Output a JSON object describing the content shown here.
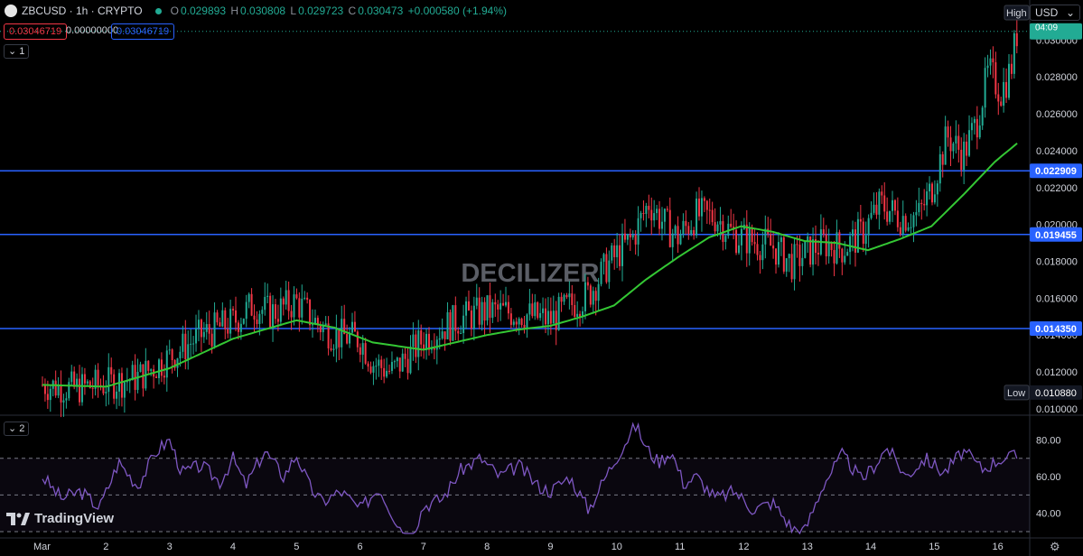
{
  "header": {
    "symbol": "ZBCUSD · 1h · CRYPTO",
    "open_label": "O",
    "open": "0.029893",
    "high_label": "H",
    "high": "0.030808",
    "low_label": "L",
    "low": "0.029723",
    "close_label": "C",
    "close": "0.030473",
    "change": "+0.000580 (+1.94%)"
  },
  "price_boxes": {
    "sell": "0.03046719",
    "spread": "0.00000000",
    "buy": "0.03046719"
  },
  "pane_buttons": {
    "main": "1",
    "rsi": "2"
  },
  "currency": "USD",
  "watermark": "DECILIZER",
  "brand": "TradingView",
  "high_tag": "High",
  "low_tag": "Low",
  "countdown": "04:09",
  "colors": {
    "up": "#22ab94",
    "down": "#f23645",
    "ma": "#34c734",
    "level": "#2962ff",
    "rsi": "#7e57c2"
  },
  "chart_data": [
    {
      "type": "candlestick",
      "title": "",
      "x_ticks": [
        "Mar",
        "2",
        "3",
        "4",
        "5",
        "6",
        "7",
        "8",
        "9",
        "10",
        "11",
        "12",
        "13",
        "14",
        "15",
        "16"
      ],
      "y_ticks": [
        "0.030000",
        "0.028000",
        "0.026000",
        "0.024000",
        "0.022000",
        "0.020000",
        "0.018000",
        "0.016000",
        "0.014000",
        "0.012000",
        "0.010000"
      ],
      "ylim": [
        0.0098,
        0.0308
      ],
      "horizontal_levels": [
        {
          "value": 0.022909,
          "label": "0.022909"
        },
        {
          "value": 0.019455,
          "label": "0.019455"
        },
        {
          "value": 0.01435,
          "label": "0.014350"
        }
      ],
      "price_high": {
        "value": 0.03047,
        "label": "0.030473"
      },
      "price_low": {
        "value": 0.01088,
        "label": "0.010880"
      },
      "close_trend_by_day": [
        [
          0.0,
          0.0113
        ],
        [
          0.5,
          0.0111
        ],
        [
          1.0,
          0.01135
        ],
        [
          1.5,
          0.0117
        ],
        [
          2.0,
          0.0128
        ],
        [
          2.5,
          0.014
        ],
        [
          3.0,
          0.0147
        ],
        [
          3.3,
          0.0156
        ],
        [
          3.6,
          0.0152
        ],
        [
          4.0,
          0.0158
        ],
        [
          4.3,
          0.0147
        ],
        [
          4.6,
          0.014
        ],
        [
          5.0,
          0.0138
        ],
        [
          5.2,
          0.0125
        ],
        [
          5.5,
          0.012
        ],
        [
          5.8,
          0.013
        ],
        [
          6.0,
          0.0138
        ],
        [
          6.3,
          0.0144
        ],
        [
          6.6,
          0.0149
        ],
        [
          7.0,
          0.0153
        ],
        [
          7.5,
          0.0152
        ],
        [
          8.0,
          0.0148
        ],
        [
          8.3,
          0.0156
        ],
        [
          8.6,
          0.0162
        ],
        [
          8.9,
          0.0178
        ],
        [
          9.3,
          0.0193
        ],
        [
          9.55,
          0.0212
        ],
        [
          9.8,
          0.02
        ],
        [
          10.0,
          0.0193
        ],
        [
          10.3,
          0.0205
        ],
        [
          10.6,
          0.0204
        ],
        [
          10.9,
          0.0194
        ],
        [
          11.2,
          0.0191
        ],
        [
          11.5,
          0.0188
        ],
        [
          11.8,
          0.0179
        ],
        [
          12.0,
          0.0184
        ],
        [
          12.3,
          0.019
        ],
        [
          12.6,
          0.0187
        ],
        [
          12.9,
          0.0195
        ],
        [
          13.2,
          0.0211
        ],
        [
          13.5,
          0.0204
        ],
        [
          13.8,
          0.0205
        ],
        [
          14.0,
          0.0219
        ],
        [
          14.25,
          0.0248
        ],
        [
          14.5,
          0.0238
        ],
        [
          14.7,
          0.0254
        ],
        [
          14.9,
          0.0283
        ],
        [
          15.1,
          0.0272
        ],
        [
          15.25,
          0.0284
        ],
        [
          15.35,
          0.03047
        ]
      ],
      "moving_average_by_day": [
        [
          0.0,
          0.0113
        ],
        [
          1.0,
          0.0112
        ],
        [
          2.0,
          0.0122
        ],
        [
          3.0,
          0.0138
        ],
        [
          4.0,
          0.0148
        ],
        [
          4.6,
          0.0144
        ],
        [
          5.2,
          0.0136
        ],
        [
          6.0,
          0.0132
        ],
        [
          6.5,
          0.0136
        ],
        [
          7.0,
          0.014
        ],
        [
          7.5,
          0.0143
        ],
        [
          8.0,
          0.0145
        ],
        [
          8.5,
          0.015
        ],
        [
          9.0,
          0.0156
        ],
        [
          9.5,
          0.017
        ],
        [
          10.0,
          0.0182
        ],
        [
          10.5,
          0.0193
        ],
        [
          11.0,
          0.0199
        ],
        [
          11.5,
          0.0196
        ],
        [
          12.0,
          0.0191
        ],
        [
          12.5,
          0.019
        ],
        [
          13.0,
          0.0186
        ],
        [
          13.5,
          0.0192
        ],
        [
          14.0,
          0.0199
        ],
        [
          14.5,
          0.0216
        ],
        [
          15.0,
          0.0234
        ],
        [
          15.35,
          0.0244
        ]
      ]
    },
    {
      "type": "line",
      "title": "",
      "series": [
        {
          "values_by_day": [
            [
              0.0,
              60
            ],
            [
              0.3,
              48
            ],
            [
              0.6,
              52
            ],
            [
              0.9,
              43
            ],
            [
              1.2,
              68
            ],
            [
              1.5,
              55
            ],
            [
              1.8,
              74
            ],
            [
              2.0,
              80
            ],
            [
              2.2,
              62
            ],
            [
              2.5,
              66
            ],
            [
              2.8,
              57
            ],
            [
              3.0,
              70
            ],
            [
              3.2,
              55
            ],
            [
              3.5,
              74
            ],
            [
              3.8,
              60
            ],
            [
              4.0,
              72
            ],
            [
              4.2,
              55
            ],
            [
              4.4,
              46
            ],
            [
              4.7,
              52
            ],
            [
              5.0,
              42
            ],
            [
              5.3,
              54
            ],
            [
              5.6,
              34
            ],
            [
              5.8,
              26
            ],
            [
              6.0,
              44
            ],
            [
              6.3,
              48
            ],
            [
              6.6,
              64
            ],
            [
              6.9,
              70
            ],
            [
              7.2,
              60
            ],
            [
              7.5,
              66
            ],
            [
              7.8,
              55
            ],
            [
              8.0,
              52
            ],
            [
              8.3,
              60
            ],
            [
              8.6,
              42
            ],
            [
              8.9,
              62
            ],
            [
              9.2,
              80
            ],
            [
              9.35,
              88
            ],
            [
              9.5,
              76
            ],
            [
              9.7,
              68
            ],
            [
              9.9,
              74
            ],
            [
              10.1,
              56
            ],
            [
              10.3,
              60
            ],
            [
              10.6,
              48
            ],
            [
              10.9,
              52
            ],
            [
              11.2,
              42
            ],
            [
              11.5,
              46
            ],
            [
              11.8,
              32
            ],
            [
              12.0,
              30
            ],
            [
              12.3,
              56
            ],
            [
              12.6,
              72
            ],
            [
              12.9,
              58
            ],
            [
              13.1,
              66
            ],
            [
              13.3,
              76
            ],
            [
              13.6,
              60
            ],
            [
              13.9,
              70
            ],
            [
              14.2,
              62
            ],
            [
              14.5,
              74
            ],
            [
              14.8,
              64
            ],
            [
              15.1,
              70
            ],
            [
              15.35,
              71
            ]
          ]
        }
      ],
      "y_ticks": [
        "80.00",
        "60.00",
        "40.00"
      ],
      "ylim": [
        28,
        92
      ],
      "band": [
        30,
        70
      ],
      "midline": 50
    }
  ]
}
